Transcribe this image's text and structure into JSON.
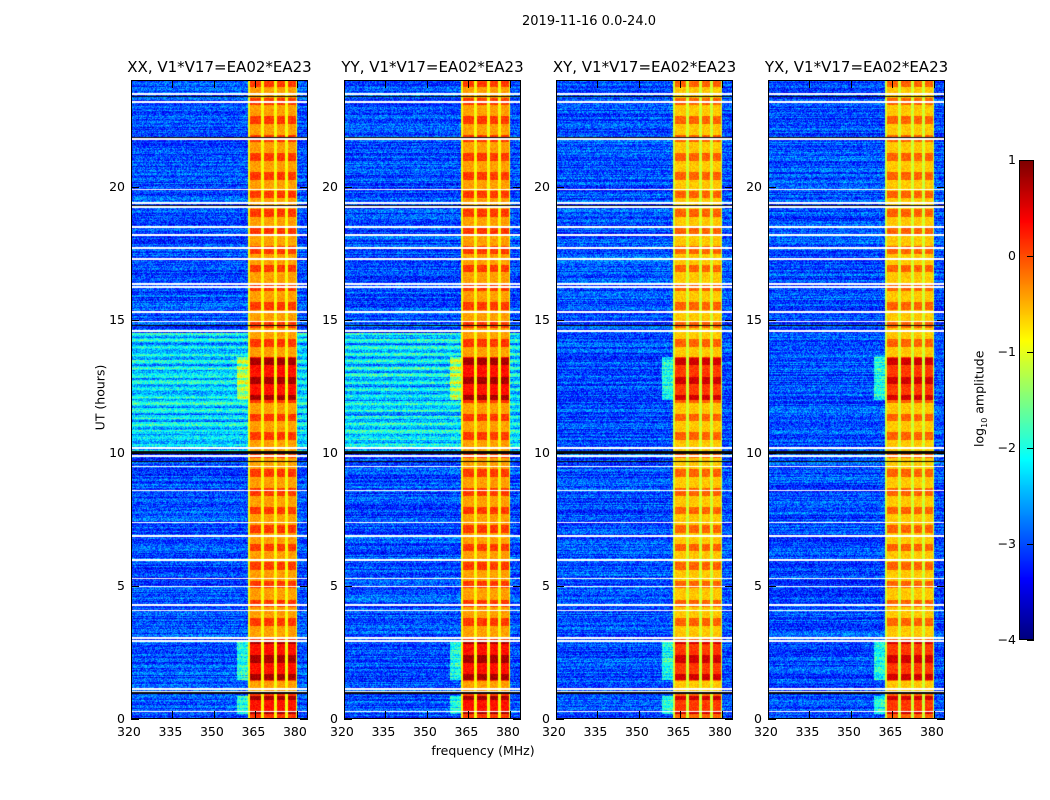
{
  "chart_data": {
    "type": "heatmap",
    "title": "2019-11-16 0.0-24.0",
    "xlabel": "frequency (MHz)",
    "ylabel": "UT (hours)",
    "xlim": [
      320,
      384
    ],
    "ylim": [
      0,
      24
    ],
    "xticks": [
      "320",
      "335",
      "350",
      "365",
      "380"
    ],
    "xtick_values": [
      320,
      335,
      350,
      365,
      380
    ],
    "yticks": [
      "0",
      "5",
      "10",
      "15",
      "20"
    ],
    "ytick_values": [
      0,
      5,
      10,
      15,
      20
    ],
    "panels": [
      {
        "title": "XX, V1*V17=EA02*EA23",
        "pol": "XX",
        "band_level": -0.7,
        "enhanced_baseline_hours": [
          10,
          14.5
        ]
      },
      {
        "title": "YY, V1*V17=EA02*EA23",
        "pol": "YY",
        "band_level": -0.7,
        "enhanced_baseline_hours": [
          10,
          14.5
        ]
      },
      {
        "title": "XY, V1*V17=EA02*EA23",
        "pol": "XY",
        "band_level": -0.9,
        "enhanced_baseline_hours": []
      },
      {
        "title": "YX, V1*V17=EA02*EA23",
        "pol": "YX",
        "band_level": -0.9,
        "enhanced_baseline_hours": []
      }
    ],
    "rfi_band_mhz": [
      362,
      380
    ],
    "rfi_subbands_mhz": [
      [
        363,
        367
      ],
      [
        368,
        371.5
      ],
      [
        372.5,
        375.5
      ],
      [
        376.5,
        379.5
      ]
    ],
    "strong_rfi_hours": [
      [
        1.5,
        3.0
      ],
      [
        12.0,
        13.6
      ],
      [
        0.2,
        0.9
      ]
    ],
    "baseline_level": -3.0,
    "flagged_hours": [
      0.3,
      1.05,
      1.15,
      2.95,
      3.05,
      4.1,
      4.3,
      5.0,
      5.3,
      6.0,
      6.9,
      7.4,
      8.6,
      9.5,
      9.9,
      10.2,
      14.6,
      14.95,
      15.3,
      16.25,
      16.35,
      17.3,
      17.7,
      18.2,
      18.5,
      19.25,
      19.4,
      19.9,
      21.8,
      23.2,
      23.5
    ],
    "bad_hours": [
      1.0,
      9.7,
      10.0,
      10.05,
      14.8,
      21.85,
      23.4,
      19.3
    ],
    "colorbar": {
      "label": "log10 amplitude",
      "label_main": "log",
      "label_sub": "10",
      "label_rest": " amplitude",
      "range": [
        -4,
        1
      ],
      "ticks": [
        "1",
        "0",
        "−1",
        "−2",
        "−3",
        "−4"
      ],
      "tick_values": [
        1,
        0,
        -1,
        -2,
        -3,
        -4
      ],
      "colormap": "jet"
    }
  }
}
